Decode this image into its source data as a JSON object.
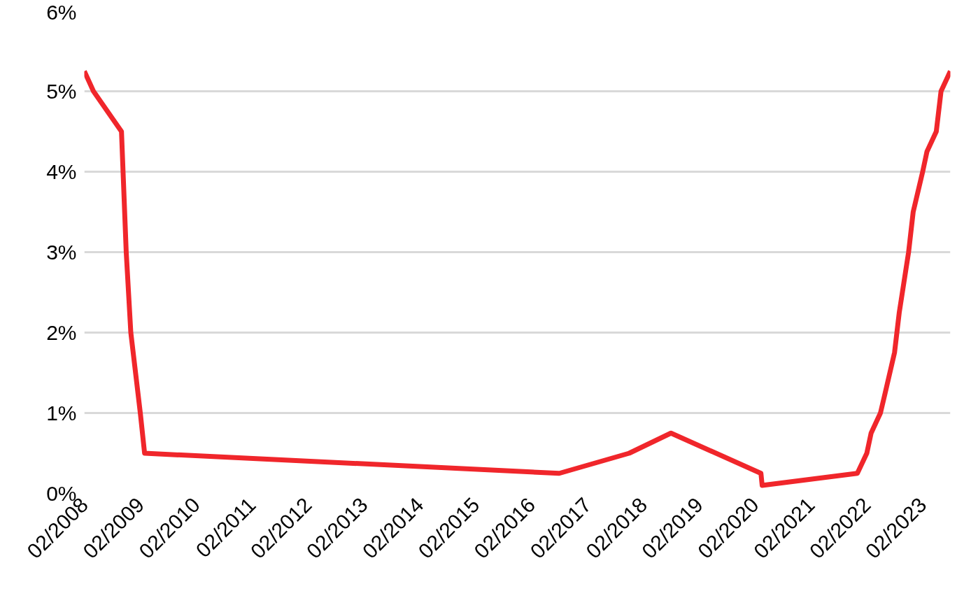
{
  "chart_data": {
    "type": "line",
    "x": [
      "2008-02",
      "2008-04",
      "2008-10",
      "2008-11",
      "2008-12",
      "2009-02",
      "2009-03",
      "2016-08",
      "2017-11",
      "2018-08",
      "2020-03-11",
      "2020-03-19",
      "2021-12",
      "2022-02",
      "2022-03",
      "2022-05",
      "2022-06",
      "2022-08",
      "2022-09",
      "2022-11",
      "2022-12",
      "2023-02",
      "2023-03",
      "2023-05",
      "2023-06",
      "2023-08"
    ],
    "series": [
      {
        "color": "#f0262b",
        "values": [
          5.25,
          5.0,
          4.5,
          3.0,
          2.0,
          1.0,
          0.5,
          0.25,
          0.5,
          0.75,
          0.25,
          0.1,
          0.25,
          0.5,
          0.75,
          1.0,
          1.25,
          1.75,
          2.25,
          3.0,
          3.5,
          4.0,
          4.25,
          4.5,
          5.0,
          5.25
        ]
      }
    ],
    "xlim": [
      "2008-02",
      "2023-08"
    ],
    "xticks": [
      {
        "value": "2008-02",
        "label": "02/2008"
      },
      {
        "value": "2009-02",
        "label": "02/2009"
      },
      {
        "value": "2010-02",
        "label": "02/2010"
      },
      {
        "value": "2011-02",
        "label": "02/2011"
      },
      {
        "value": "2012-02",
        "label": "02/2012"
      },
      {
        "value": "2013-02",
        "label": "02/2013"
      },
      {
        "value": "2014-02",
        "label": "02/2014"
      },
      {
        "value": "2015-02",
        "label": "02/2015"
      },
      {
        "value": "2016-02",
        "label": "02/2016"
      },
      {
        "value": "2017-02",
        "label": "02/2017"
      },
      {
        "value": "2018-02",
        "label": "02/2018"
      },
      {
        "value": "2019-02",
        "label": "02/2019"
      },
      {
        "value": "2020-02",
        "label": "02/2020"
      },
      {
        "value": "2021-02",
        "label": "02/2021"
      },
      {
        "value": "2022-02",
        "label": "02/2022"
      },
      {
        "value": "2023-02",
        "label": "02/2023"
      }
    ],
    "ylim": [
      0,
      6
    ],
    "yticks": [
      {
        "value": 0,
        "label": "0%"
      },
      {
        "value": 1,
        "label": "1%"
      },
      {
        "value": 2,
        "label": "2%"
      },
      {
        "value": 3,
        "label": "3%"
      },
      {
        "value": 4,
        "label": "4%"
      },
      {
        "value": 5,
        "label": "5%"
      },
      {
        "value": 6,
        "label": "6%"
      }
    ],
    "grid": "y",
    "marker": "none",
    "line_style": "solid"
  }
}
